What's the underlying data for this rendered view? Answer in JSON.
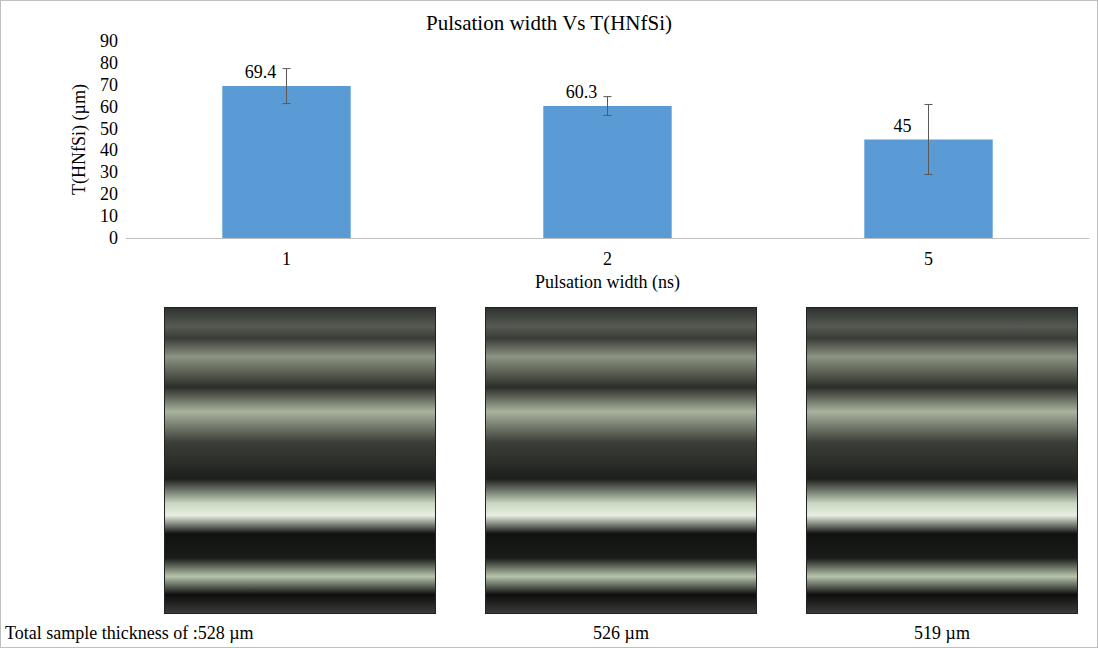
{
  "chart_data": {
    "type": "bar",
    "title": "Pulsation width Vs T(HNfSi)",
    "categories": [
      "1",
      "2",
      "5"
    ],
    "values": [
      69.4,
      60.3,
      45
    ],
    "errors": [
      8,
      4.3,
      16
    ],
    "color": "#5b9bd5",
    "x_label": "Pulsation width (ns)",
    "y_label": "T(HNfSi) (µm)",
    "ylim": [
      0,
      90
    ],
    "yticks": [
      0,
      10,
      20,
      30,
      40,
      50,
      60,
      70,
      80,
      90
    ],
    "grid": false,
    "data_labels": true
  },
  "panels": [
    {
      "caption": "Total sample thickness of :528 µm"
    },
    {
      "caption": "526 µm"
    },
    {
      "caption": "519 µm"
    }
  ]
}
